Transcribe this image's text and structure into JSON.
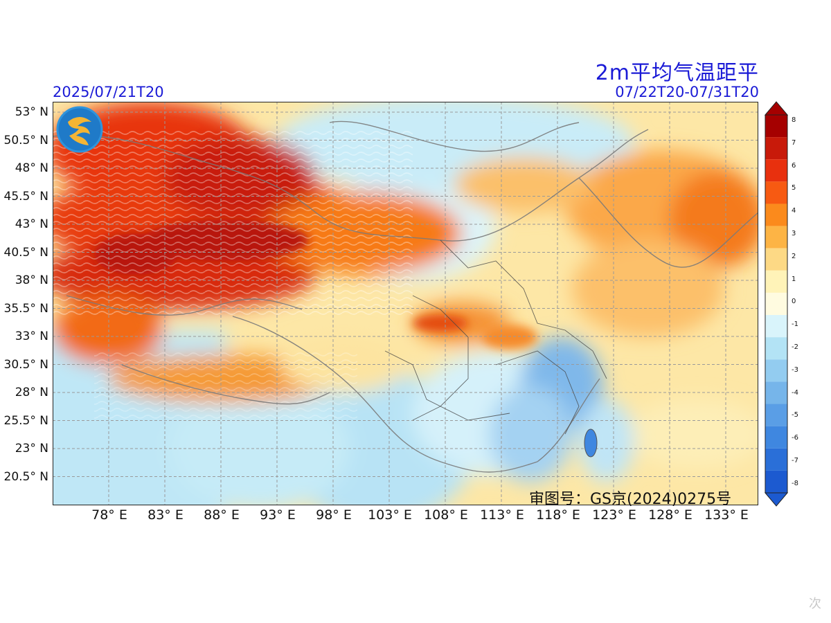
{
  "map": {
    "title": "2m平均气温距平",
    "init_time": "2025/07/21T20",
    "valid_period": "07/22T20-07/31T20",
    "approval_number": "审图号：GS京(2024)0275号",
    "latitude_labels": [
      "53° N",
      "50.5° N",
      "48° N",
      "45.5° N",
      "43° N",
      "40.5° N",
      "38° N",
      "35.5° N",
      "33° N",
      "30.5° N",
      "28° N",
      "25.5° N",
      "23° N",
      "20.5° N"
    ],
    "longitude_labels": [
      "78° E",
      "83° E",
      "88° E",
      "93° E",
      "98° E",
      "103° E",
      "108° E",
      "113° E",
      "118° E",
      "123° E",
      "128° E",
      "133° E"
    ],
    "colorbar": {
      "ticks": [
        "8",
        "7",
        "6",
        "5",
        "4",
        "3",
        "2",
        "1",
        "0",
        "-1",
        "-2",
        "-3",
        "-4",
        "-5",
        "-6",
        "-7",
        "-8"
      ],
      "colors": [
        "#a50000",
        "#c81a0a",
        "#e8300e",
        "#f75a12",
        "#fb8a1c",
        "#fdb445",
        "#fdd985",
        "#fff3b8",
        "#fffbe0",
        "#d9f4fb",
        "#b3e3f5",
        "#93ccf0",
        "#76b5ea",
        "#5a9ee6",
        "#3f87e0",
        "#2a6fd8",
        "#1c5ad0"
      ]
    },
    "logo_name": "agency-logo",
    "watermark": "次"
  }
}
